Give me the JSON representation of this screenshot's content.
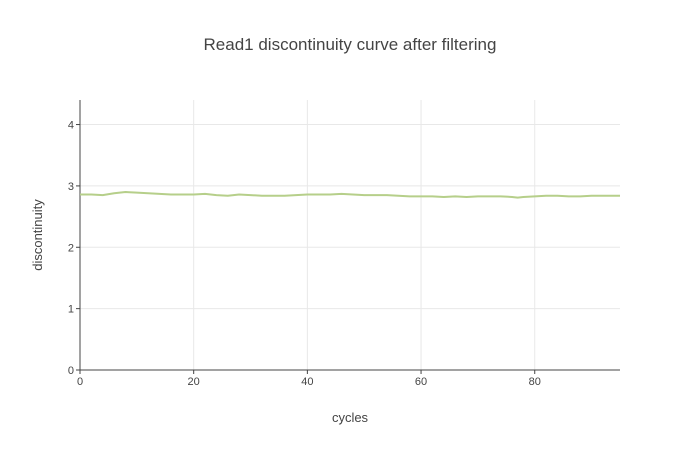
{
  "chart_data": {
    "type": "line",
    "title": "Read1 discontinuity curve after filtering",
    "xlabel": "cycles",
    "ylabel": "discontinuity",
    "xlim": [
      0,
      95
    ],
    "ylim": [
      0,
      4.4
    ],
    "x_ticks": [
      0,
      20,
      40,
      60,
      80
    ],
    "y_ticks": [
      0,
      1,
      2,
      3,
      4
    ],
    "grid": true,
    "legend": "none",
    "series": [
      {
        "color": "#b6cf8a",
        "x": [
          0,
          2,
          4,
          6,
          8,
          10,
          12,
          14,
          16,
          18,
          20,
          22,
          24,
          26,
          28,
          30,
          32,
          34,
          36,
          38,
          40,
          42,
          44,
          46,
          48,
          50,
          52,
          54,
          56,
          58,
          60,
          62,
          64,
          66,
          68,
          70,
          72,
          74,
          76,
          77,
          78,
          80,
          82,
          84,
          86,
          88,
          90,
          92,
          94,
          95
        ],
        "y": [
          2.86,
          2.86,
          2.85,
          2.88,
          2.9,
          2.89,
          2.88,
          2.87,
          2.86,
          2.86,
          2.86,
          2.87,
          2.85,
          2.84,
          2.86,
          2.85,
          2.84,
          2.84,
          2.84,
          2.85,
          2.86,
          2.86,
          2.86,
          2.87,
          2.86,
          2.85,
          2.85,
          2.85,
          2.84,
          2.83,
          2.83,
          2.83,
          2.82,
          2.83,
          2.82,
          2.83,
          2.83,
          2.83,
          2.82,
          2.81,
          2.82,
          2.83,
          2.84,
          2.84,
          2.83,
          2.83,
          2.84,
          2.84,
          2.84,
          2.84
        ]
      }
    ]
  }
}
